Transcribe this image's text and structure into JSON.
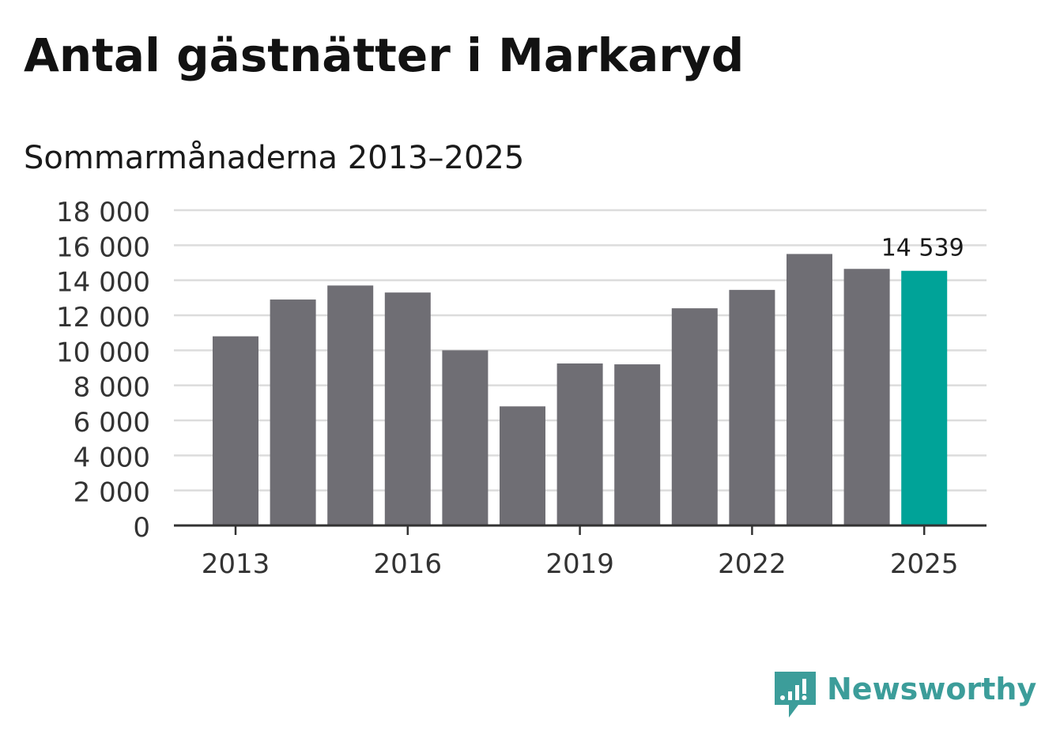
{
  "title": "Antal gästnätter i Markaryd",
  "subtitle": "Sommarmånaderna 2013–2025",
  "chart_data": {
    "type": "bar",
    "categories": [
      "2013",
      "2014",
      "2015",
      "2016",
      "2017",
      "2018",
      "2019",
      "2020",
      "2021",
      "2022",
      "2023",
      "2024",
      "2025"
    ],
    "values": [
      10800,
      12900,
      13700,
      13300,
      10000,
      6800,
      9250,
      9200,
      12400,
      13450,
      15500,
      14650,
      14539
    ],
    "x_tick_labels": [
      "2013",
      "2016",
      "2019",
      "2022",
      "2025"
    ],
    "y_tick_labels": [
      "0",
      "2 000",
      "4 000",
      "6 000",
      "8 000",
      "10 000",
      "12 000",
      "14 000",
      "16 000",
      "18 000"
    ],
    "ylim": [
      0,
      18000
    ],
    "annotation": "14 539",
    "grid": true,
    "colors": {
      "bar": "#6f6e74",
      "highlight": "#00a398",
      "grid": "#dcdcdc",
      "axis": "#333333"
    }
  },
  "brand": {
    "name": "Newsworthy",
    "logo_icon": "newsworthy-logo-icon",
    "color": "#3c9d9a"
  }
}
